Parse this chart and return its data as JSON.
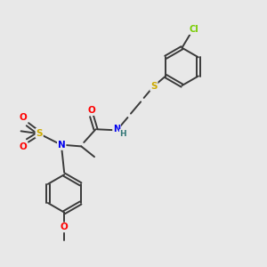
{
  "background_color": "#e8e8e8",
  "bond_color": "#3a3a3a",
  "atom_colors": {
    "O": "#ff0000",
    "N": "#0000ee",
    "S_thio": "#ccaa00",
    "S_sulfonyl": "#ccaa00",
    "Cl": "#77cc00",
    "C": "#3a3a3a",
    "H": "#337777"
  },
  "figsize": [
    3.0,
    3.0
  ],
  "dpi": 100
}
